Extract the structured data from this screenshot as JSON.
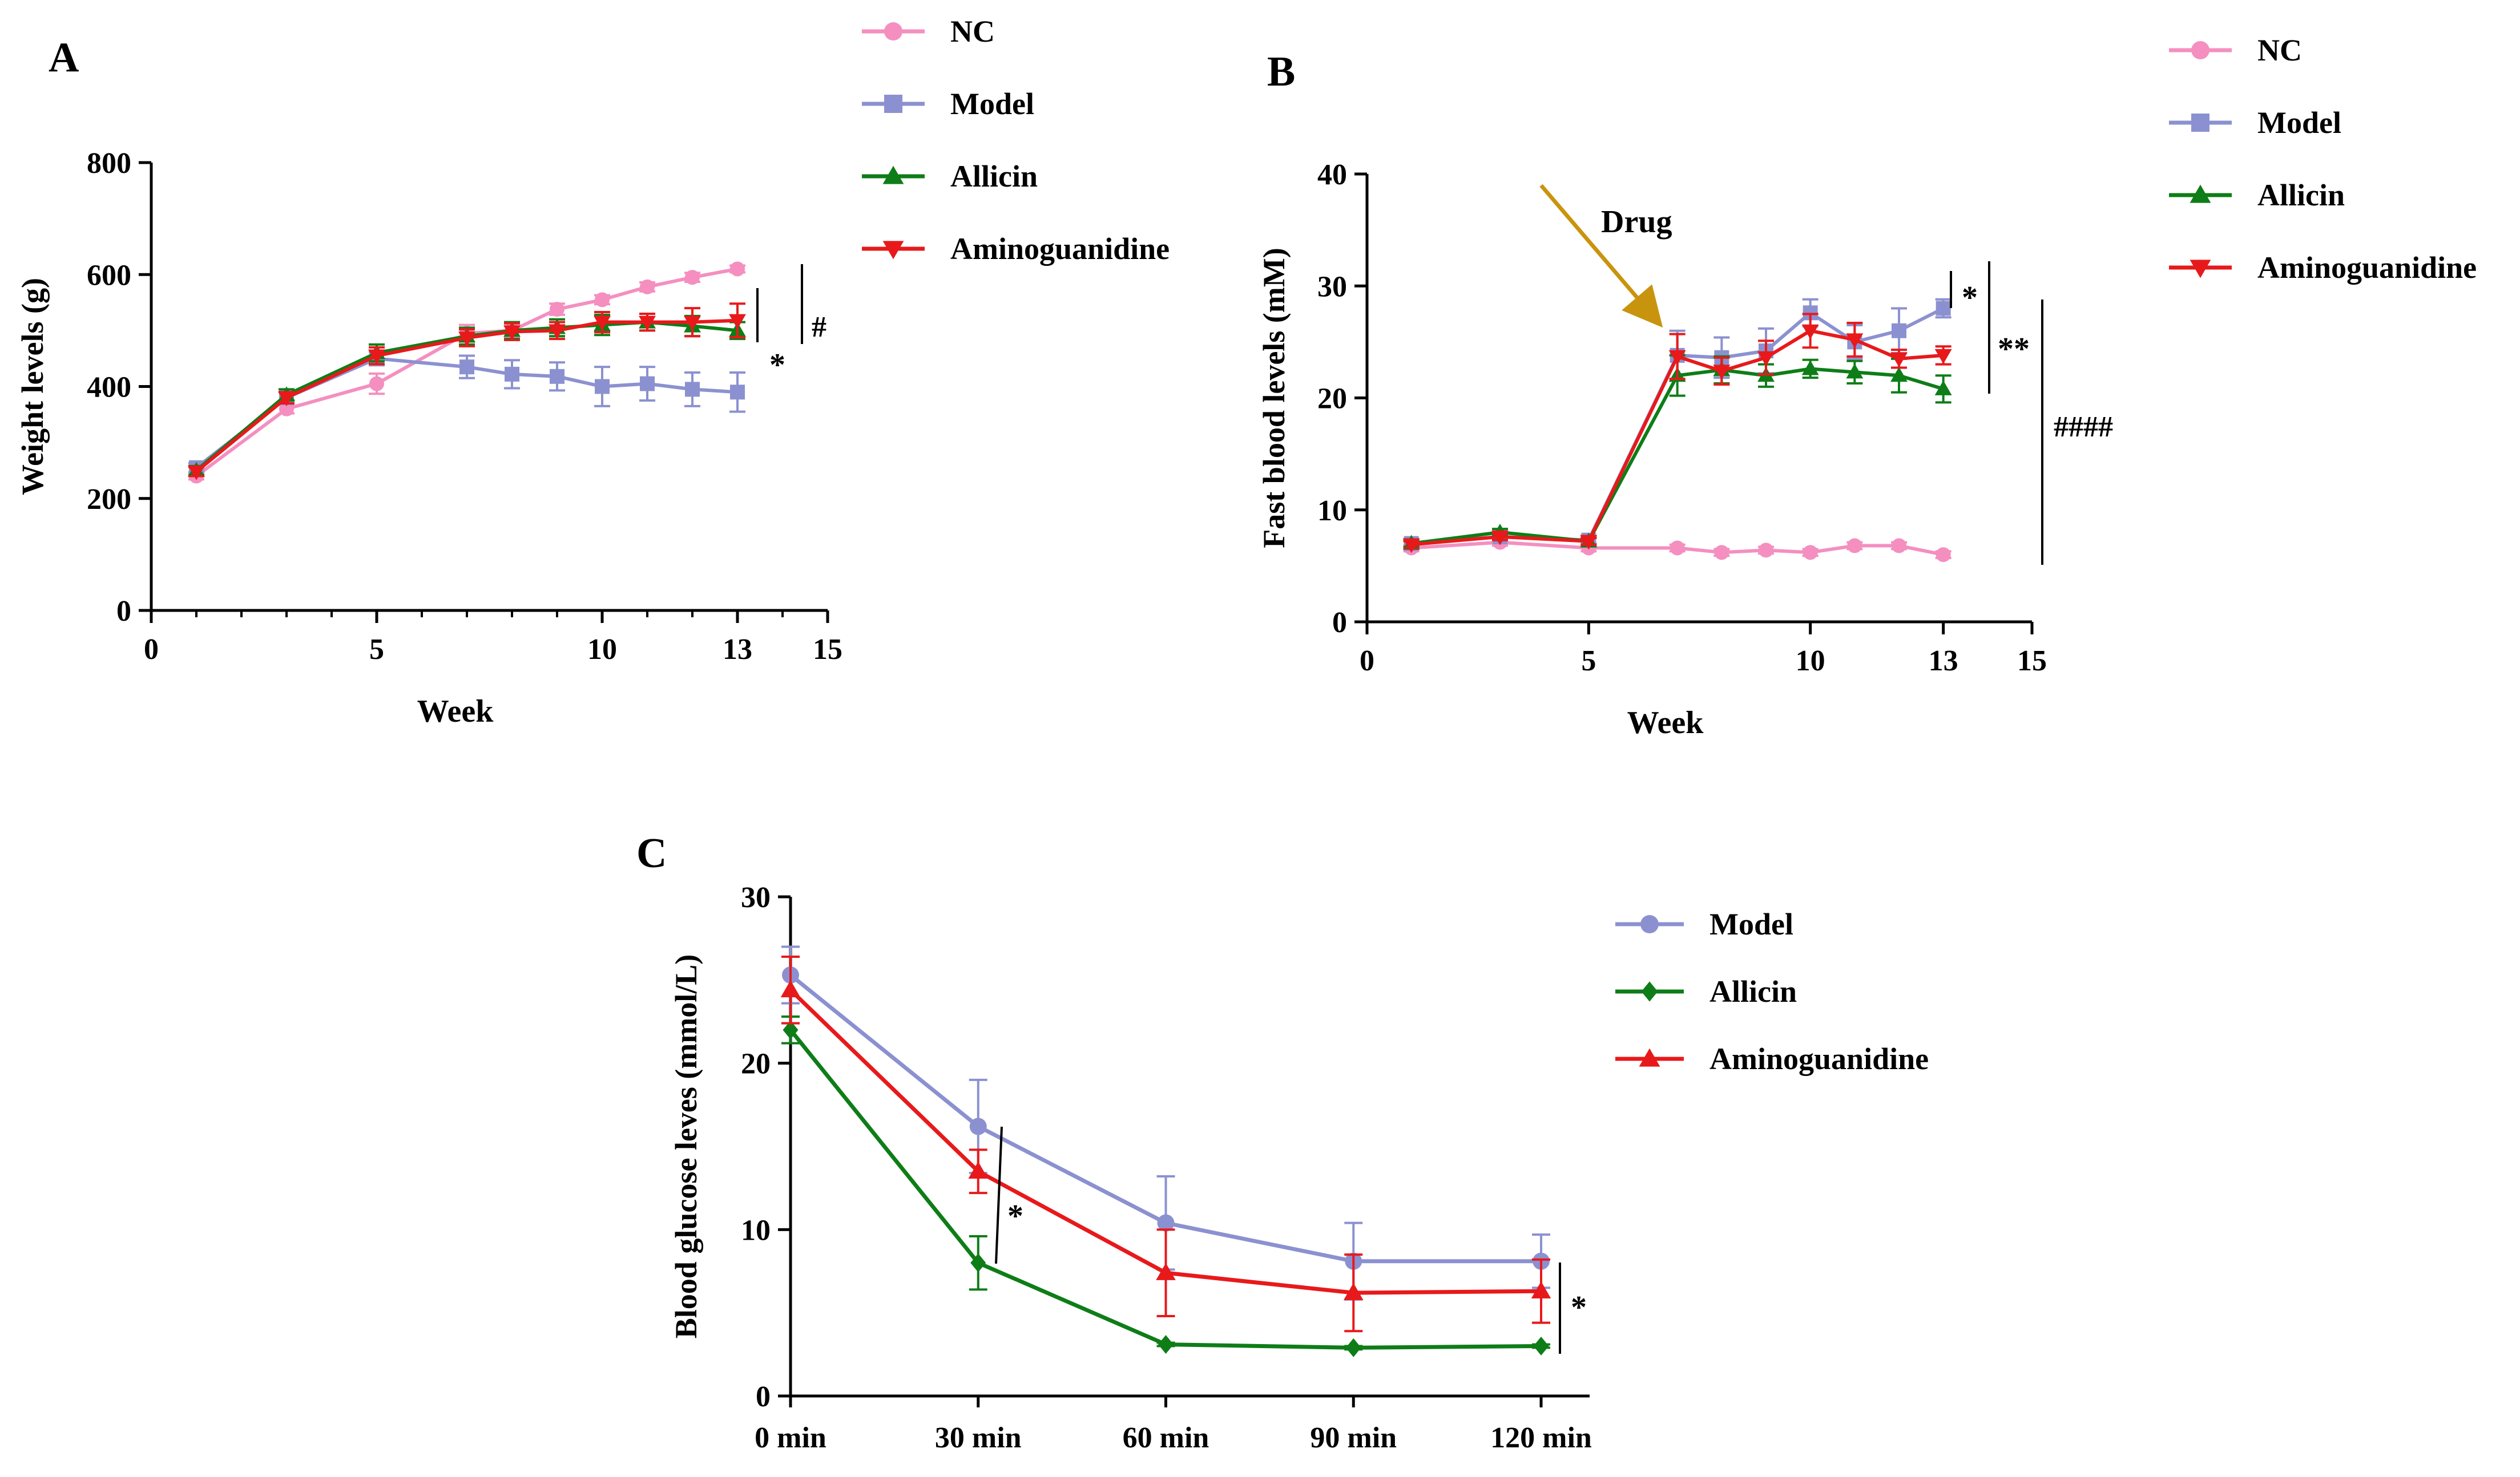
{
  "colors": {
    "nc": "#f48fc0",
    "model": "#8b91d0",
    "allicin": "#0e7d17",
    "aminoguanidine": "#e8191b",
    "drug_arrow": "#c9940d",
    "axis": "#000000"
  },
  "chart_data": [
    {
      "type": "line",
      "panel": "A",
      "xlabel": "Week",
      "ylabel": "Weight levels (g)",
      "xlim": [
        0,
        15
      ],
      "ylim": [
        0,
        800
      ],
      "xticks": [
        0,
        5,
        10,
        13,
        15
      ],
      "yticks": [
        0,
        200,
        400,
        600,
        800
      ],
      "legend_position": "top-right",
      "series": [
        {
          "key": "nc",
          "name": "NC",
          "marker": "circle",
          "x": [
            1,
            3,
            5,
            7,
            8,
            9,
            10,
            11,
            12,
            13
          ],
          "values": [
            240,
            360,
            405,
            495,
            500,
            538,
            555,
            578,
            595,
            610
          ],
          "err": [
            6,
            8,
            18,
            15,
            12,
            10,
            8,
            8,
            8,
            6
          ]
        },
        {
          "key": "model",
          "name": "Model",
          "marker": "square",
          "x": [
            1,
            3,
            5,
            7,
            8,
            9,
            10,
            11,
            12,
            13
          ],
          "values": [
            255,
            380,
            450,
            435,
            422,
            418,
            400,
            405,
            395,
            390
          ],
          "err": [
            8,
            10,
            12,
            20,
            25,
            25,
            35,
            30,
            30,
            35
          ]
        },
        {
          "key": "allicin",
          "name": "Allicin",
          "marker": "triangle-up",
          "x": [
            1,
            3,
            5,
            7,
            8,
            9,
            10,
            11,
            12,
            13
          ],
          "values": [
            250,
            385,
            460,
            490,
            500,
            505,
            510,
            515,
            508,
            500
          ],
          "err": [
            8,
            10,
            15,
            15,
            15,
            15,
            18,
            15,
            18,
            15
          ]
        },
        {
          "key": "aminoguanidine",
          "name": "Aminoguanidine",
          "marker": "triangle-down",
          "x": [
            1,
            3,
            5,
            7,
            8,
            9,
            10,
            11,
            12,
            13
          ],
          "values": [
            248,
            380,
            455,
            487,
            498,
            500,
            515,
            515,
            515,
            518
          ],
          "err": [
            8,
            10,
            15,
            15,
            15,
            15,
            18,
            15,
            25,
            30
          ]
        }
      ],
      "annotations": [
        "*",
        "#"
      ]
    },
    {
      "type": "line",
      "panel": "B",
      "xlabel": "Week",
      "ylabel": "Fast blood levels (mM)",
      "xlim": [
        0,
        15
      ],
      "ylim": [
        0,
        40
      ],
      "xticks": [
        0,
        5,
        10,
        13,
        15
      ],
      "yticks": [
        0,
        10,
        20,
        30,
        40
      ],
      "legend_position": "top-right",
      "series": [
        {
          "key": "nc",
          "name": "NC",
          "marker": "circle",
          "x": [
            1,
            3,
            5,
            7,
            8,
            9,
            10,
            11,
            12,
            13
          ],
          "values": [
            6.6,
            7.1,
            6.6,
            6.6,
            6.2,
            6.4,
            6.2,
            6.8,
            6.8,
            6.0
          ],
          "err": [
            0.3,
            0.3,
            0.3,
            0.3,
            0.3,
            0.3,
            0.3,
            0.3,
            0.3,
            0.3
          ]
        },
        {
          "key": "model",
          "name": "Model",
          "marker": "square",
          "x": [
            1,
            3,
            5,
            7,
            8,
            9,
            10,
            11,
            12,
            13
          ],
          "values": [
            7.0,
            7.6,
            7.3,
            23.8,
            23.6,
            24.2,
            27.6,
            25.0,
            26.0,
            28.0
          ],
          "err": [
            0.3,
            0.3,
            0.3,
            2.2,
            1.8,
            2.0,
            1.2,
            1.5,
            2.0,
            0.8
          ]
        },
        {
          "key": "allicin",
          "name": "Allicin",
          "marker": "triangle-up",
          "x": [
            1,
            3,
            5,
            7,
            8,
            9,
            10,
            11,
            12,
            13
          ],
          "values": [
            7.0,
            8.0,
            7.2,
            22.0,
            22.5,
            22.0,
            22.6,
            22.3,
            22.0,
            20.8
          ],
          "err": [
            0.3,
            0.3,
            0.3,
            1.8,
            1.2,
            1.0,
            0.8,
            1.0,
            1.5,
            1.2
          ]
        },
        {
          "key": "aminoguanidine",
          "name": "Aminoguanidine",
          "marker": "triangle-down",
          "x": [
            1,
            3,
            5,
            7,
            8,
            9,
            10,
            11,
            12,
            13
          ],
          "values": [
            6.9,
            7.6,
            7.2,
            23.7,
            22.4,
            23.6,
            26.0,
            25.2,
            23.5,
            23.8
          ],
          "err": [
            0.3,
            0.3,
            0.3,
            2.0,
            1.2,
            1.5,
            1.5,
            1.5,
            0.8,
            0.8
          ]
        }
      ],
      "annotations": [
        "Drug",
        "*",
        "**",
        "####"
      ]
    },
    {
      "type": "line",
      "panel": "C",
      "xlabel": "",
      "ylabel": "Blood glucose leves (mmol/L)",
      "categories": [
        "0 min",
        "30 min",
        "60 min",
        "90 min",
        "120 min"
      ],
      "ylim": [
        0,
        30
      ],
      "yticks": [
        0,
        10,
        20,
        30
      ],
      "legend_position": "right",
      "series": [
        {
          "key": "model",
          "name": "Model",
          "marker": "circle",
          "values": [
            25.3,
            16.2,
            10.4,
            8.1,
            8.1
          ],
          "err": [
            1.7,
            2.8,
            2.8,
            2.3,
            1.6
          ]
        },
        {
          "key": "allicin",
          "name": "Allicin",
          "marker": "diamond",
          "values": [
            22.0,
            8.0,
            3.1,
            2.9,
            3.0
          ],
          "err": [
            0.8,
            1.6,
            0.1,
            0.1,
            0.1
          ]
        },
        {
          "key": "aminoguanidine",
          "name": "Aminoguanidine",
          "marker": "triangle-up",
          "values": [
            24.4,
            13.5,
            7.4,
            6.2,
            6.3
          ],
          "err": [
            2.0,
            1.3,
            2.6,
            2.3,
            1.9
          ]
        }
      ],
      "annotations": [
        "*",
        "*"
      ]
    }
  ]
}
